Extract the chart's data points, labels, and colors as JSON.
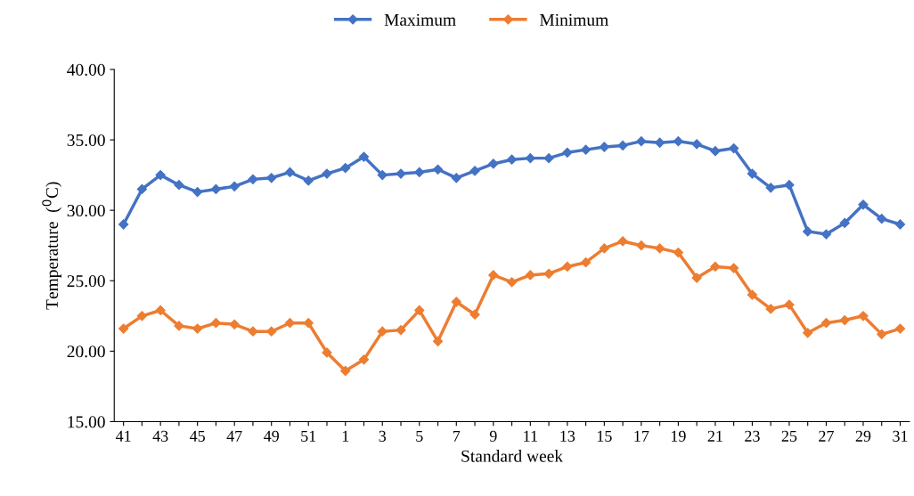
{
  "chart_data": {
    "type": "line",
    "xlabel": "Standard week",
    "ylabel": "Temperature  ($^{0}$C)",
    "categories": [
      "41",
      null,
      "43",
      null,
      "45",
      null,
      "47",
      null,
      "49",
      null,
      "51",
      null,
      "1",
      null,
      "3",
      null,
      "5",
      null,
      "7",
      null,
      "9",
      null,
      "11",
      null,
      "13",
      null,
      "15",
      null,
      "17",
      null,
      "19",
      null,
      "21",
      null,
      "23",
      null,
      "25",
      null,
      "27",
      null,
      "29",
      null,
      "31"
    ],
    "series": [
      {
        "name": "Maximum",
        "color": "#4472c4",
        "values": [
          29.0,
          31.5,
          32.5,
          31.8,
          31.3,
          31.5,
          31.7,
          32.2,
          32.3,
          32.7,
          32.1,
          32.6,
          33.0,
          33.8,
          32.5,
          32.6,
          32.7,
          32.9,
          32.3,
          32.8,
          33.3,
          33.6,
          33.7,
          33.7,
          34.1,
          34.3,
          34.5,
          34.6,
          34.9,
          34.8,
          34.9,
          34.7,
          34.2,
          34.4,
          32.6,
          31.6,
          31.8,
          28.5,
          28.3,
          29.1,
          30.4,
          29.4,
          29.0
        ]
      },
      {
        "name": "Minimum",
        "color": "#ed7d31",
        "values": [
          21.6,
          22.5,
          22.9,
          21.8,
          21.6,
          22.0,
          21.9,
          21.4,
          21.4,
          22.0,
          22.0,
          19.9,
          18.6,
          19.4,
          21.4,
          21.5,
          22.9,
          20.7,
          23.5,
          22.6,
          25.4,
          24.9,
          25.4,
          25.5,
          26.0,
          26.3,
          27.3,
          27.8,
          27.5,
          27.3,
          27.0,
          25.2,
          26.0,
          25.9,
          24.0,
          23.0,
          23.3,
          21.3,
          22.0,
          22.2,
          22.5,
          21.2,
          21.6
        ]
      }
    ],
    "ylim": [
      15,
      40
    ],
    "yticks": [
      {
        "value": 15,
        "label": "15.00"
      },
      {
        "value": 20,
        "label": "20.00"
      },
      {
        "value": 25,
        "label": "25.00"
      },
      {
        "value": 30,
        "label": "30.00"
      },
      {
        "value": 35,
        "label": "35.00"
      },
      {
        "value": 40,
        "label": "40.00"
      }
    ],
    "legend": "top",
    "marker": "diamond",
    "line_style": "solid"
  }
}
